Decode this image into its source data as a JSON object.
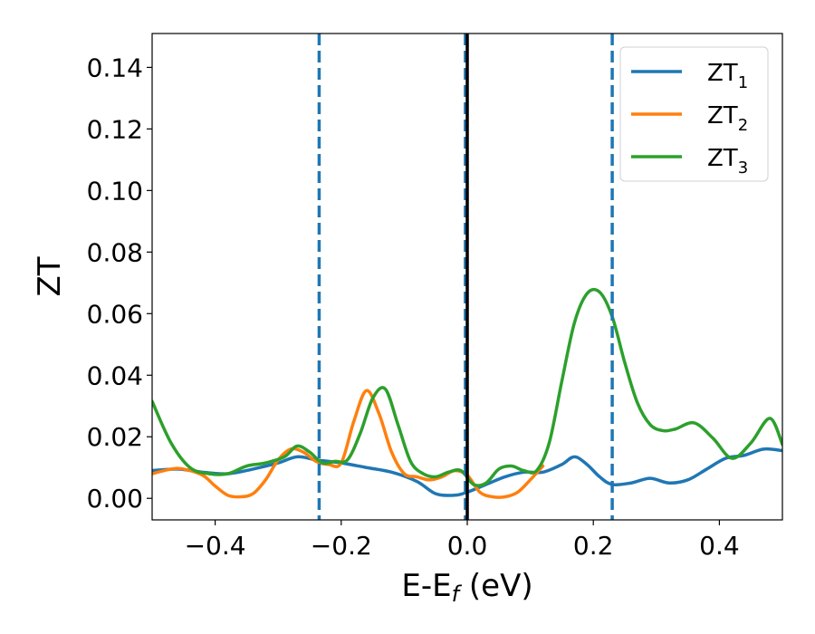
{
  "chart_data": {
    "type": "line",
    "xlabel": {
      "main": "E-E",
      "sub": "f",
      "rest": " (eV)"
    },
    "ylabel": "ZT",
    "xlim": [
      -0.5,
      0.5
    ],
    "ylim": [
      -0.007,
      0.151
    ],
    "xticks": [
      {
        "value": -0.4,
        "label": "−0.4"
      },
      {
        "value": -0.2,
        "label": "−0.2"
      },
      {
        "value": 0.0,
        "label": "0.0"
      },
      {
        "value": 0.2,
        "label": "0.2"
      },
      {
        "value": 0.4,
        "label": "0.4"
      }
    ],
    "yticks": [
      {
        "value": 0.0,
        "label": "0.00"
      },
      {
        "value": 0.02,
        "label": "0.02"
      },
      {
        "value": 0.04,
        "label": "0.04"
      },
      {
        "value": 0.06,
        "label": "0.06"
      },
      {
        "value": 0.08,
        "label": "0.08"
      },
      {
        "value": 0.1,
        "label": "0.10"
      },
      {
        "value": 0.12,
        "label": "0.12"
      },
      {
        "value": 0.14,
        "label": "0.14"
      }
    ],
    "grid": false,
    "legend_position": "top-right",
    "vlines": [
      {
        "x": -0.235,
        "style": "dashed",
        "color": "#1f77b4"
      },
      {
        "x": 0.23,
        "style": "dashed",
        "color": "#1f77b4"
      },
      {
        "x": -0.003,
        "style": "dashed",
        "color": "#1f77b4"
      },
      {
        "x": 0.0,
        "style": "solid",
        "color": "#000000"
      }
    ],
    "series": [
      {
        "name": "ZT",
        "sub": "1",
        "color": "#1f77b4",
        "x": [
          -0.5,
          -0.46,
          -0.42,
          -0.38,
          -0.34,
          -0.3,
          -0.27,
          -0.24,
          -0.2,
          -0.16,
          -0.12,
          -0.08,
          -0.05,
          -0.02,
          0.0,
          0.03,
          0.06,
          0.09,
          0.12,
          0.15,
          0.17,
          0.19,
          0.21,
          0.23,
          0.26,
          0.29,
          0.32,
          0.35,
          0.38,
          0.41,
          0.44,
          0.47,
          0.5
        ],
        "y": [
          0.009,
          0.0095,
          0.0085,
          0.008,
          0.0095,
          0.0115,
          0.0135,
          0.0125,
          0.0115,
          0.01,
          0.0085,
          0.0055,
          0.0015,
          0.001,
          0.002,
          0.0045,
          0.007,
          0.0085,
          0.0085,
          0.011,
          0.0135,
          0.011,
          0.007,
          0.0045,
          0.005,
          0.0065,
          0.005,
          0.006,
          0.0095,
          0.013,
          0.014,
          0.016,
          0.0155
        ]
      },
      {
        "name": "ZT",
        "sub": "2",
        "color": "#ff7f0e",
        "x": [
          -0.5,
          -0.47,
          -0.45,
          -0.42,
          -0.4,
          -0.38,
          -0.36,
          -0.34,
          -0.32,
          -0.3,
          -0.28,
          -0.26,
          -0.24,
          -0.22,
          -0.2,
          -0.18,
          -0.16,
          -0.14,
          -0.12,
          -0.1,
          -0.08,
          -0.06,
          -0.04,
          -0.02,
          0.0,
          0.02,
          0.04,
          0.06,
          0.08,
          0.1,
          0.12
        ],
        "y": [
          0.008,
          0.0095,
          0.0095,
          0.0075,
          0.004,
          0.001,
          0.0005,
          0.0015,
          0.006,
          0.0125,
          0.016,
          0.015,
          0.012,
          0.011,
          0.0115,
          0.025,
          0.035,
          0.0275,
          0.015,
          0.008,
          0.007,
          0.006,
          0.007,
          0.009,
          0.0075,
          0.002,
          0.0005,
          0.0005,
          0.002,
          0.006,
          0.0105
        ]
      },
      {
        "name": "ZT",
        "sub": "3",
        "color": "#2ca02c",
        "x": [
          -0.5,
          -0.47,
          -0.44,
          -0.41,
          -0.38,
          -0.35,
          -0.32,
          -0.29,
          -0.27,
          -0.25,
          -0.23,
          -0.21,
          -0.19,
          -0.17,
          -0.15,
          -0.13,
          -0.11,
          -0.09,
          -0.07,
          -0.05,
          -0.03,
          -0.01,
          0.01,
          0.03,
          0.05,
          0.07,
          0.09,
          0.11,
          0.13,
          0.15,
          0.17,
          0.19,
          0.21,
          0.23,
          0.25,
          0.27,
          0.29,
          0.31,
          0.33,
          0.36,
          0.39,
          0.42,
          0.45,
          0.48,
          0.5
        ],
        "y": [
          0.0315,
          0.018,
          0.01,
          0.008,
          0.008,
          0.0105,
          0.0115,
          0.0135,
          0.017,
          0.015,
          0.0115,
          0.012,
          0.0125,
          0.021,
          0.0325,
          0.0355,
          0.024,
          0.012,
          0.008,
          0.007,
          0.0085,
          0.009,
          0.0045,
          0.005,
          0.0095,
          0.0105,
          0.009,
          0.009,
          0.018,
          0.038,
          0.057,
          0.0665,
          0.067,
          0.059,
          0.044,
          0.031,
          0.024,
          0.022,
          0.0225,
          0.0245,
          0.0195,
          0.013,
          0.018,
          0.026,
          0.0175
        ]
      }
    ]
  }
}
